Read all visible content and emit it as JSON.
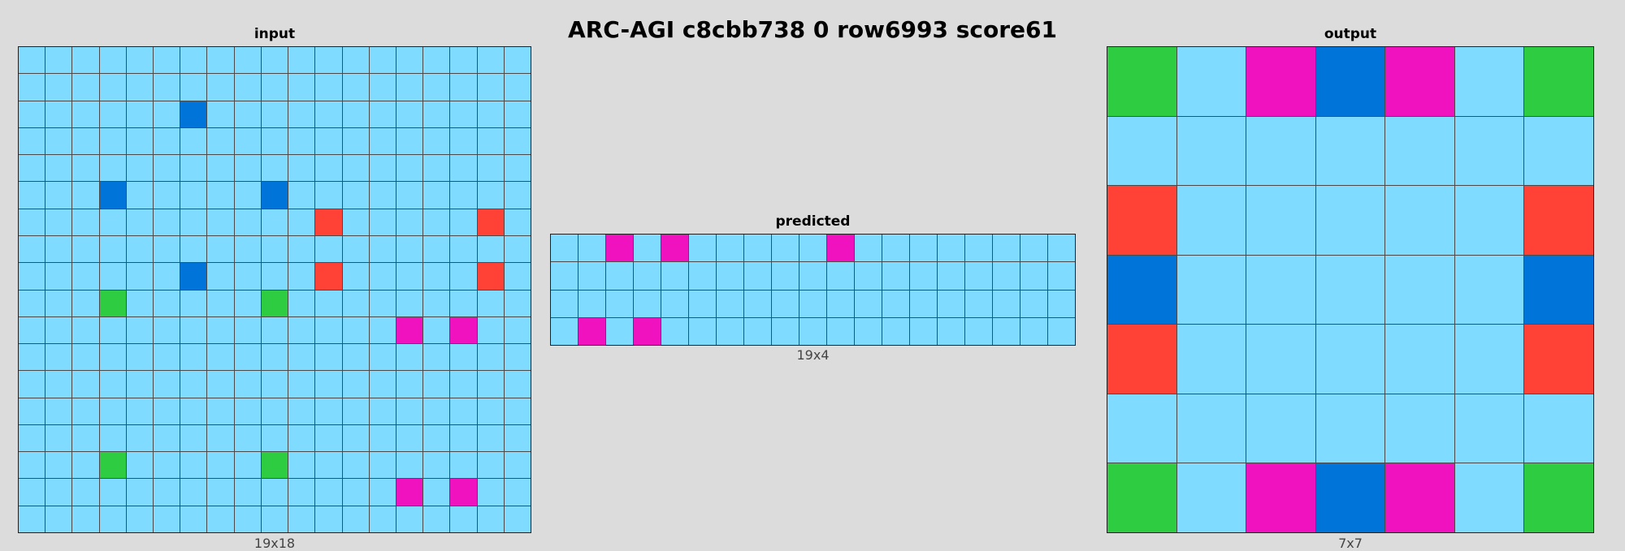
{
  "title": "ARC-AGI c8cbb738 0 row6993 score61",
  "colors": {
    "0": "#000000",
    "1": "#0074d9",
    "2": "#ff4136",
    "3": "#2ecc40",
    "4": "#ffdc00",
    "5": "#aaaaaa",
    "6": "#f012be",
    "7": "#ff851b",
    "8": "#7fdbff",
    "9": "#870c25"
  },
  "panels": [
    {
      "key": "input",
      "title": "input",
      "caption": "19x18",
      "grid": [
        [
          8,
          8,
          8,
          8,
          8,
          8,
          8,
          8,
          8,
          8,
          8,
          8,
          8,
          8,
          8,
          8,
          8,
          8,
          8
        ],
        [
          8,
          8,
          8,
          8,
          8,
          8,
          8,
          8,
          8,
          8,
          8,
          8,
          8,
          8,
          8,
          8,
          8,
          8,
          8
        ],
        [
          8,
          8,
          8,
          8,
          8,
          8,
          1,
          8,
          8,
          8,
          8,
          8,
          8,
          8,
          8,
          8,
          8,
          8,
          8
        ],
        [
          8,
          8,
          8,
          8,
          8,
          8,
          8,
          8,
          8,
          8,
          8,
          8,
          8,
          8,
          8,
          8,
          8,
          8,
          8
        ],
        [
          8,
          8,
          8,
          8,
          8,
          8,
          8,
          8,
          8,
          8,
          8,
          8,
          8,
          8,
          8,
          8,
          8,
          8,
          8
        ],
        [
          8,
          8,
          8,
          1,
          8,
          8,
          8,
          8,
          8,
          1,
          8,
          8,
          8,
          8,
          8,
          8,
          8,
          8,
          8
        ],
        [
          8,
          8,
          8,
          8,
          8,
          8,
          8,
          8,
          8,
          8,
          8,
          2,
          8,
          8,
          8,
          8,
          8,
          2,
          8
        ],
        [
          8,
          8,
          8,
          8,
          8,
          8,
          8,
          8,
          8,
          8,
          8,
          8,
          8,
          8,
          8,
          8,
          8,
          8,
          8
        ],
        [
          8,
          8,
          8,
          8,
          8,
          8,
          1,
          8,
          8,
          8,
          8,
          2,
          8,
          8,
          8,
          8,
          8,
          2,
          8
        ],
        [
          8,
          8,
          8,
          3,
          8,
          8,
          8,
          8,
          8,
          3,
          8,
          8,
          8,
          8,
          8,
          8,
          8,
          8,
          8
        ],
        [
          8,
          8,
          8,
          8,
          8,
          8,
          8,
          8,
          8,
          8,
          8,
          8,
          8,
          8,
          6,
          8,
          6,
          8,
          8
        ],
        [
          8,
          8,
          8,
          8,
          8,
          8,
          8,
          8,
          8,
          8,
          8,
          8,
          8,
          8,
          8,
          8,
          8,
          8,
          8
        ],
        [
          8,
          8,
          8,
          8,
          8,
          8,
          8,
          8,
          8,
          8,
          8,
          8,
          8,
          8,
          8,
          8,
          8,
          8,
          8
        ],
        [
          8,
          8,
          8,
          8,
          8,
          8,
          8,
          8,
          8,
          8,
          8,
          8,
          8,
          8,
          8,
          8,
          8,
          8,
          8
        ],
        [
          8,
          8,
          8,
          8,
          8,
          8,
          8,
          8,
          8,
          8,
          8,
          8,
          8,
          8,
          8,
          8,
          8,
          8,
          8
        ],
        [
          8,
          8,
          8,
          3,
          8,
          8,
          8,
          8,
          8,
          3,
          8,
          8,
          8,
          8,
          8,
          8,
          8,
          8,
          8
        ],
        [
          8,
          8,
          8,
          8,
          8,
          8,
          8,
          8,
          8,
          8,
          8,
          8,
          8,
          8,
          6,
          8,
          6,
          8,
          8
        ],
        [
          8,
          8,
          8,
          8,
          8,
          8,
          8,
          8,
          8,
          8,
          8,
          8,
          8,
          8,
          8,
          8,
          8,
          8,
          8
        ]
      ]
    },
    {
      "key": "predicted",
      "title": "predicted",
      "caption": "19x4",
      "grid": [
        [
          8,
          8,
          6,
          8,
          6,
          8,
          8,
          8,
          8,
          8,
          6,
          8,
          8,
          8,
          8,
          8,
          8,
          8,
          8
        ],
        [
          8,
          8,
          8,
          8,
          8,
          8,
          8,
          8,
          8,
          8,
          8,
          8,
          8,
          8,
          8,
          8,
          8,
          8,
          8
        ],
        [
          8,
          8,
          8,
          8,
          8,
          8,
          8,
          8,
          8,
          8,
          8,
          8,
          8,
          8,
          8,
          8,
          8,
          8,
          8
        ],
        [
          8,
          6,
          8,
          6,
          8,
          8,
          8,
          8,
          8,
          8,
          8,
          8,
          8,
          8,
          8,
          8,
          8,
          8,
          8
        ]
      ]
    },
    {
      "key": "output",
      "title": "output",
      "caption": "7x7",
      "grid": [
        [
          3,
          8,
          6,
          1,
          6,
          8,
          3
        ],
        [
          8,
          8,
          8,
          8,
          8,
          8,
          8
        ],
        [
          2,
          8,
          8,
          8,
          8,
          8,
          2
        ],
        [
          1,
          8,
          8,
          8,
          8,
          8,
          1
        ],
        [
          2,
          8,
          8,
          8,
          8,
          8,
          2
        ],
        [
          8,
          8,
          8,
          8,
          8,
          8,
          8
        ],
        [
          3,
          8,
          6,
          1,
          6,
          8,
          3
        ]
      ]
    }
  ]
}
